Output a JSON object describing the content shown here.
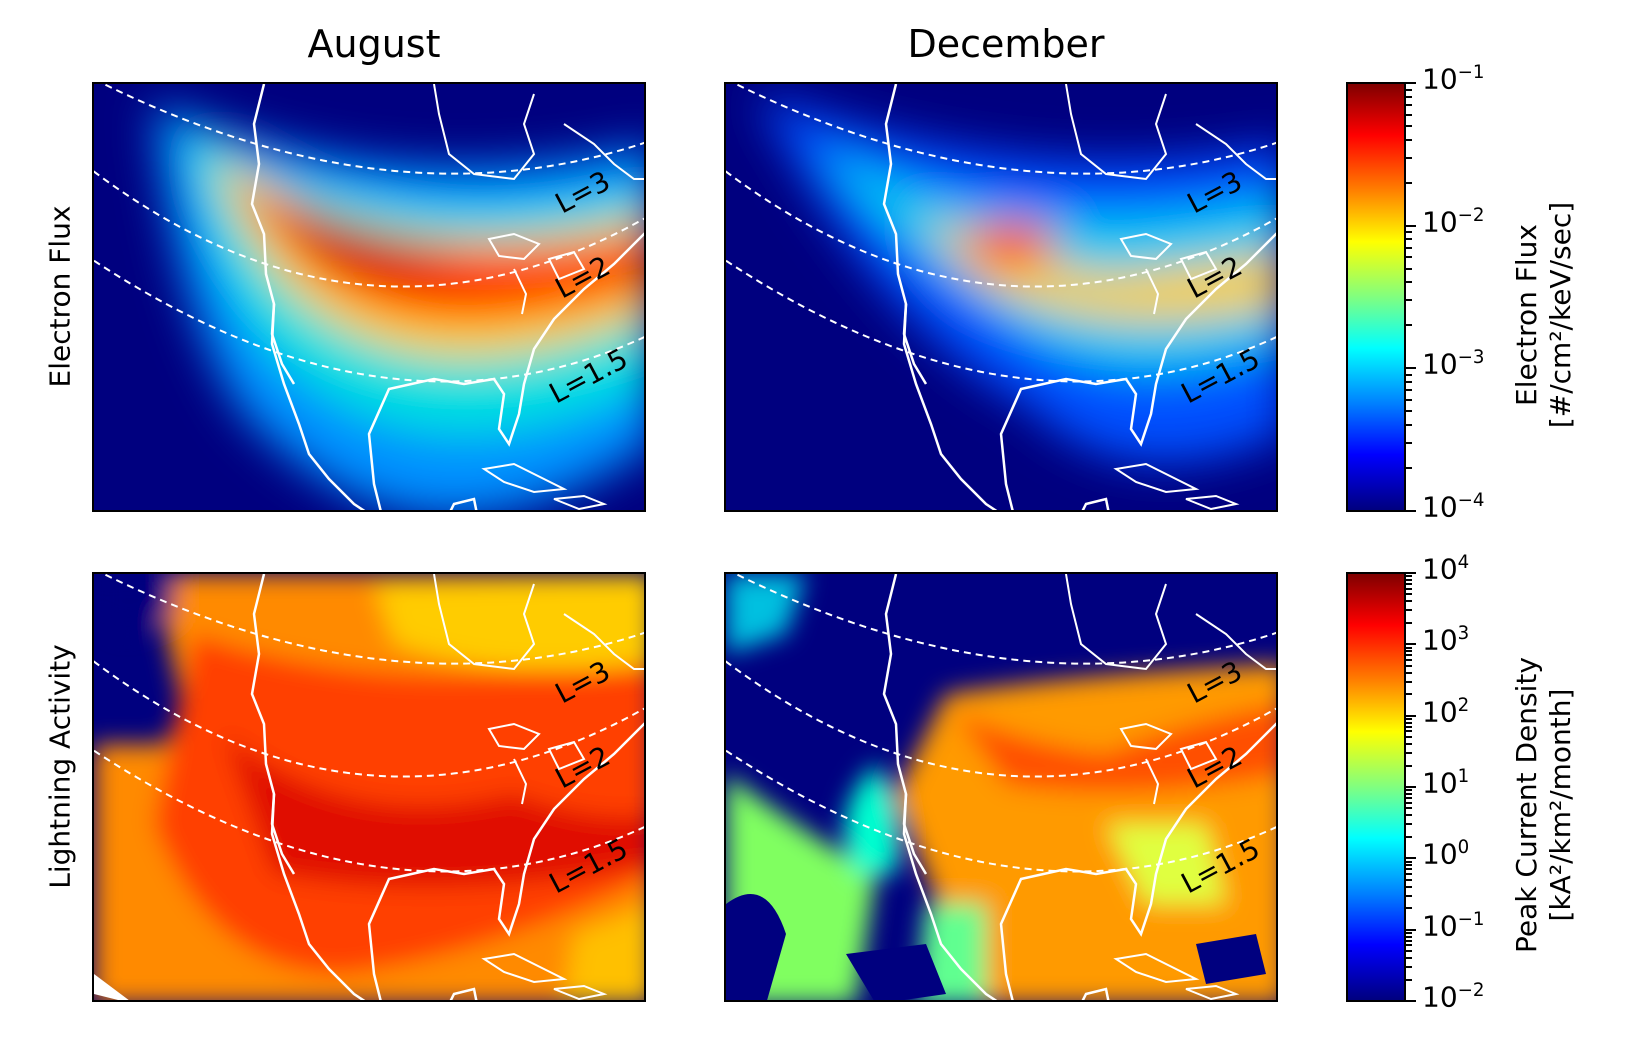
{
  "columns": [
    "August",
    "December"
  ],
  "rows": [
    "Electron Flux",
    "Lightning Activity"
  ],
  "l_shells": [
    "L=3",
    "L=2",
    "L=1.5"
  ],
  "colorbar_flux": {
    "label_line1": "Electron Flux",
    "label_line2": "[#/cm²/keV/sec]",
    "ticks": [
      {
        "base": "10",
        "exp": "−1"
      },
      {
        "base": "10",
        "exp": "−2"
      },
      {
        "base": "10",
        "exp": "−3"
      },
      {
        "base": "10",
        "exp": "−4"
      }
    ],
    "range": [
      0.0001,
      0.1
    ],
    "scale": "log",
    "colormap": "jet"
  },
  "colorbar_lightning": {
    "label_line1": "Peak Current Density",
    "label_line2": "[kA²/km²/month]",
    "ticks": [
      {
        "base": "10",
        "exp": "4"
      },
      {
        "base": "10",
        "exp": "3"
      },
      {
        "base": "10",
        "exp": "2"
      },
      {
        "base": "10",
        "exp": "1"
      },
      {
        "base": "10",
        "exp": "0"
      },
      {
        "base": "10",
        "exp": "−1"
      },
      {
        "base": "10",
        "exp": "−2"
      }
    ],
    "range": [
      0.01,
      10000
    ],
    "scale": "log",
    "colormap": "jet"
  },
  "colors": {
    "background_low": "#00007f",
    "coastline": "#ffffff",
    "lshell_line": "#ffffff"
  }
}
